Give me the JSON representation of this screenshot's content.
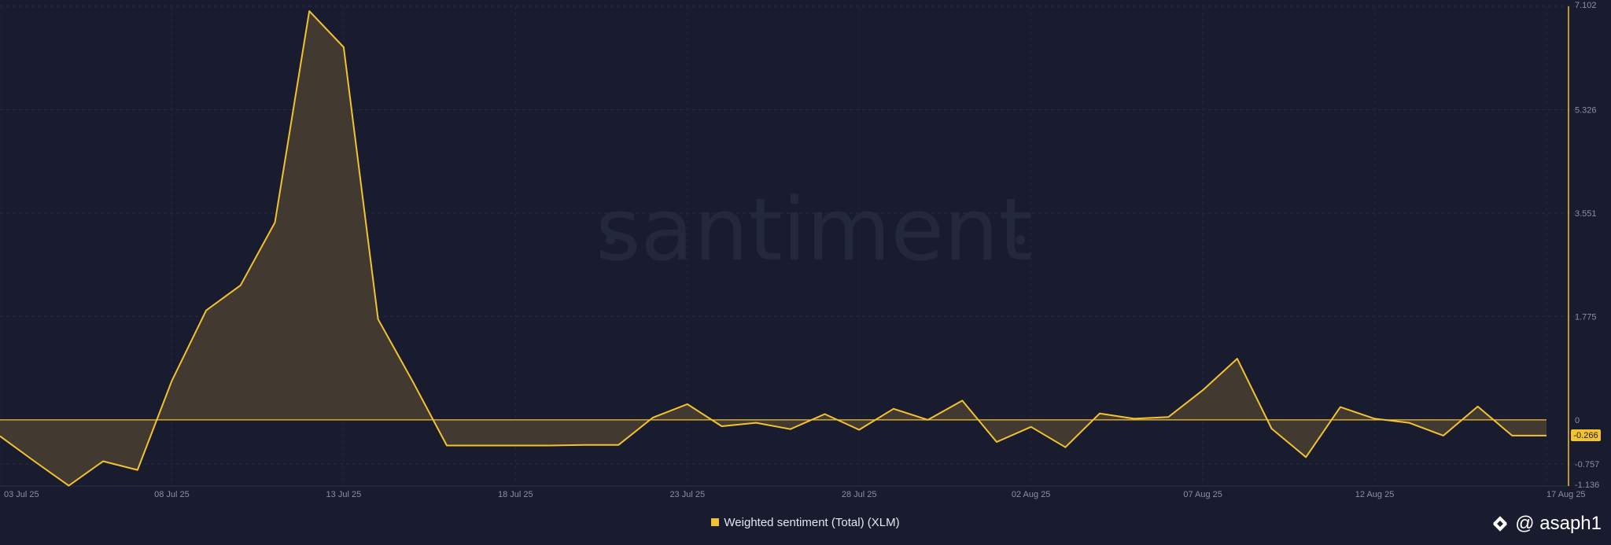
{
  "chart_data": {
    "type": "area",
    "background": "#181c2e",
    "series_color": "#f2c230",
    "grid": true,
    "legend_position": "bottom-center",
    "ylim": [
      -1.136,
      7.102
    ],
    "y_ticks": [
      7.102,
      5.326,
      3.551,
      1.775,
      0,
      -0.757,
      -1.136
    ],
    "y_tick_labels": [
      "7.102",
      "5.326",
      "3.551",
      "1.775",
      "0",
      "-0.757",
      "-1.136"
    ],
    "x_tick_labels": [
      "03 Jul 25",
      "08 Jul 25",
      "13 Jul 25",
      "18 Jul 25",
      "23 Jul 25",
      "28 Jul 25",
      "02 Aug 25",
      "07 Aug 25",
      "12 Aug 25",
      "17 Aug 25"
    ],
    "current_value_label": "-0.266",
    "x": [
      "2025-07-03",
      "2025-07-04",
      "2025-07-05",
      "2025-07-06",
      "2025-07-07",
      "2025-07-08",
      "2025-07-09",
      "2025-07-10",
      "2025-07-11",
      "2025-07-12",
      "2025-07-13",
      "2025-07-14",
      "2025-07-15",
      "2025-07-16",
      "2025-07-17",
      "2025-07-18",
      "2025-07-19",
      "2025-07-20",
      "2025-07-21",
      "2025-07-22",
      "2025-07-23",
      "2025-07-24",
      "2025-07-25",
      "2025-07-26",
      "2025-07-27",
      "2025-07-28",
      "2025-07-29",
      "2025-07-30",
      "2025-07-31",
      "2025-08-01",
      "2025-08-02",
      "2025-08-03",
      "2025-08-04",
      "2025-08-05",
      "2025-08-06",
      "2025-08-07",
      "2025-08-08",
      "2025-08-09",
      "2025-08-10",
      "2025-08-11",
      "2025-08-12",
      "2025-08-13",
      "2025-08-14",
      "2025-08-15",
      "2025-08-16",
      "2025-08-17"
    ],
    "series": [
      {
        "name": "Weighted sentiment (Total) (XLM)",
        "values": [
          -0.28,
          -0.71,
          -1.13,
          -0.71,
          -0.86,
          0.67,
          1.88,
          2.31,
          3.39,
          7.02,
          6.4,
          1.73,
          0.67,
          -0.44,
          -0.44,
          -0.44,
          -0.44,
          -0.43,
          -0.43,
          0.04,
          0.27,
          -0.11,
          -0.05,
          -0.16,
          0.1,
          -0.17,
          0.19,
          0.0,
          0.33,
          -0.38,
          -0.12,
          -0.47,
          0.11,
          0.02,
          0.05,
          0.51,
          1.05,
          -0.15,
          -0.64,
          0.22,
          0.02,
          -0.05,
          -0.27,
          0.23,
          -0.27,
          -0.27
        ]
      }
    ]
  },
  "legend": {
    "label": "Weighted sentiment (Total) (XLM)"
  },
  "watermark": {
    "brand": "santiment",
    "author": "@ asaph1"
  }
}
